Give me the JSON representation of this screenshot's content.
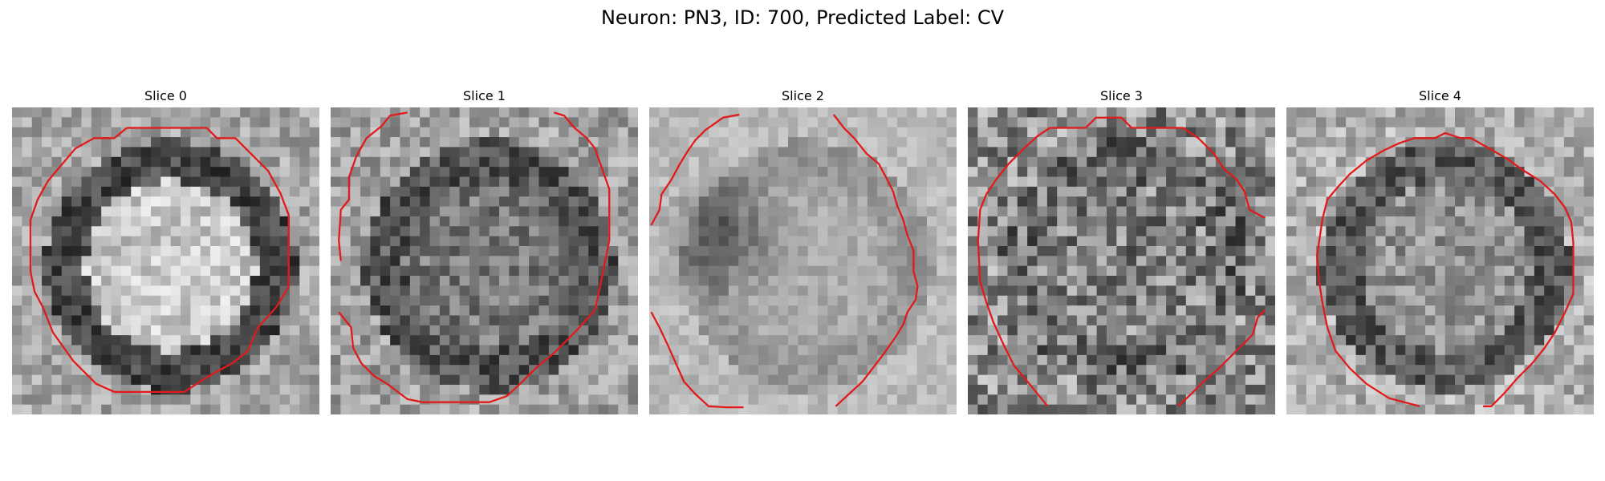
{
  "figure": {
    "title": "Neuron: PN3, ID: 700, Predicted Label: CV"
  },
  "panels": [
    {
      "title": "Slice 0"
    },
    {
      "title": "Slice 1"
    },
    {
      "title": "Slice 2"
    },
    {
      "title": "Slice 3"
    },
    {
      "title": "Slice 4"
    }
  ],
  "colors": {
    "contour": "#e11b1b",
    "colormap": "grayscale"
  }
}
